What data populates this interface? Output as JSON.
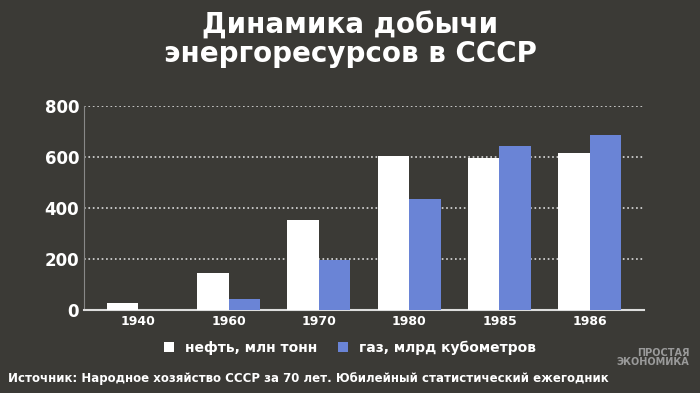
{
  "chart_data": {
    "type": "bar",
    "title": "Динамика добычи\nэнергоресурсов в СССР",
    "categories": [
      "1940",
      "1960",
      "1970",
      "1980",
      "1985",
      "1986"
    ],
    "series": [
      {
        "name": "нефть, млн тонн",
        "color": "#ffffff",
        "values": [
          31,
          148,
          353,
          603,
          595,
          615
        ]
      },
      {
        "name": "газ, млрд кубометров",
        "color": "#6a84d6",
        "values": [
          3,
          45,
          198,
          435,
          643,
          686
        ]
      }
    ],
    "ylim": [
      0,
      800
    ],
    "yticks": [
      0,
      200,
      400,
      600,
      800
    ],
    "grid": true,
    "legend": "bottom",
    "annotations": [
      "Источник: Народное хозяйство СССР за 70 лет. Юбилейный статистический ежегодник",
      "ПРОСТАЯ\nЭКОНОМИКА"
    ]
  }
}
